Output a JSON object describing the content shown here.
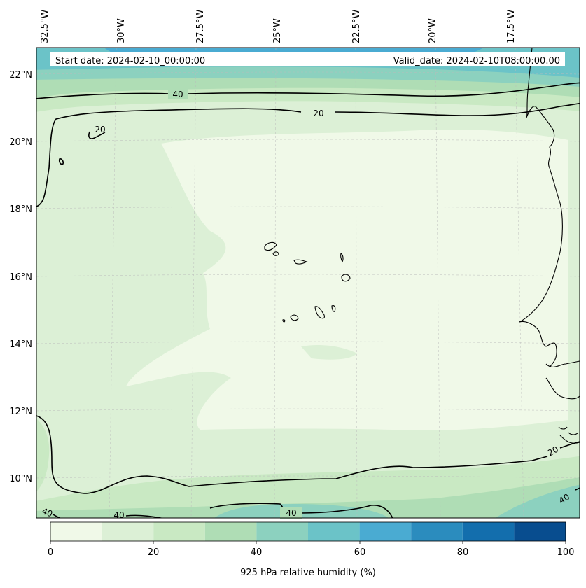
{
  "header": {
    "start_date": "Start date: 2024-02-10_00:00:00",
    "valid_date": "Valid_date: 2024-02-10T08:00:00.00"
  },
  "longitude_labels": [
    "32.5°W",
    "30°W",
    "27.5°W",
    "25°W",
    "22.5°W",
    "20°W",
    "17.5°W"
  ],
  "latitude_labels": [
    "22°N",
    "20°N",
    "18°N",
    "16°N",
    "14°N",
    "12°N",
    "10°N"
  ],
  "contours": {
    "levels": [
      20,
      40
    ],
    "labels": [
      "40",
      "20",
      "20",
      "20",
      "40",
      "40",
      "40",
      "40"
    ]
  },
  "colorbar": {
    "label": "925 hPa relative humidity (%)",
    "ticks": [
      "0",
      "20",
      "40",
      "60",
      "80",
      "100"
    ],
    "bins": [
      0,
      10,
      20,
      30,
      40,
      50,
      60,
      70,
      80,
      90,
      100
    ],
    "colors": [
      "#f0f9e8",
      "#dcf0d6",
      "#c9e9c3",
      "#afddb5",
      "#8cd1bf",
      "#6bc3c8",
      "#4aabd2",
      "#2b8cbe",
      "#136ead",
      "#084d8f"
    ]
  },
  "colors": {
    "land_outline": "#000000",
    "contour_line": "#000000",
    "gridline": "#bbbbbb"
  }
}
